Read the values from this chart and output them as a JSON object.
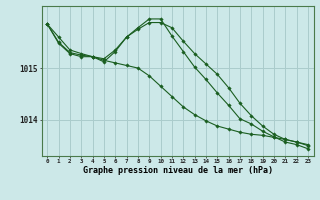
{
  "title": "Graphe pression niveau de la mer (hPa)",
  "background_color": "#cce8e8",
  "plot_background": "#cce8e8",
  "grid_color": "#aacccc",
  "line_color": "#1a5e20",
  "marker_color": "#1a5e20",
  "x_labels": [
    "0",
    "1",
    "2",
    "3",
    "4",
    "5",
    "6",
    "7",
    "8",
    "9",
    "10",
    "11",
    "12",
    "13",
    "14",
    "15",
    "16",
    "17",
    "18",
    "19",
    "20",
    "21",
    "22",
    "23"
  ],
  "yticks": [
    1014,
    1015
  ],
  "ylim": [
    1013.3,
    1016.2
  ],
  "xlim": [
    -0.5,
    23.5
  ],
  "series": [
    [
      1015.85,
      1015.6,
      1015.35,
      1015.28,
      1015.22,
      1015.15,
      1015.1,
      1015.05,
      1015.0,
      1014.85,
      1014.65,
      1014.45,
      1014.25,
      1014.1,
      1013.98,
      1013.88,
      1013.82,
      1013.76,
      1013.72,
      1013.7,
      1013.66,
      1013.62,
      1013.57,
      1013.52
    ],
    [
      1015.85,
      1015.5,
      1015.3,
      1015.25,
      1015.22,
      1015.18,
      1015.35,
      1015.6,
      1015.75,
      1015.88,
      1015.88,
      1015.78,
      1015.52,
      1015.28,
      1015.08,
      1014.88,
      1014.62,
      1014.32,
      1014.08,
      1013.88,
      1013.72,
      1013.62,
      1013.57,
      1013.5
    ],
    [
      1015.85,
      1015.48,
      1015.28,
      1015.22,
      1015.22,
      1015.12,
      1015.32,
      1015.6,
      1015.78,
      1015.95,
      1015.95,
      1015.62,
      1015.32,
      1015.02,
      1014.78,
      1014.52,
      1014.28,
      1014.02,
      1013.92,
      1013.78,
      1013.67,
      1013.57,
      1013.52,
      1013.44
    ]
  ]
}
